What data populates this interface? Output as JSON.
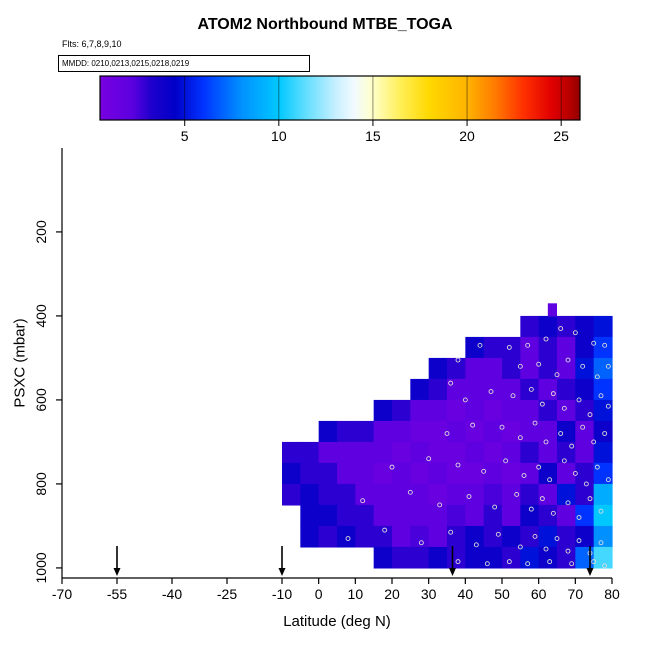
{
  "title": "ATOM2 Northbound MTBE_TOGA",
  "flights_label": "Flts: 6,7,8,9,10",
  "legend": {
    "label": "MMDD: 0210,0213,0215,0218,0219",
    "ticks": [
      5,
      10,
      15,
      20,
      25
    ],
    "value_range": [
      0.5,
      26
    ],
    "colormap": [
      [
        0.5,
        "#7800E0"
      ],
      [
        2.2,
        "#5C00E0"
      ],
      [
        3.2,
        "#2000CC"
      ],
      [
        4.5,
        "#0000C8"
      ],
      [
        6,
        "#0033FF"
      ],
      [
        8,
        "#0090FF"
      ],
      [
        10,
        "#00C8FF"
      ],
      [
        11.5,
        "#66DFFF"
      ],
      [
        13,
        "#C6EFFF"
      ],
      [
        14,
        "#F2FAFF"
      ],
      [
        15,
        "#FFFFC8"
      ],
      [
        16.5,
        "#FFEE55"
      ],
      [
        18,
        "#FFD800"
      ],
      [
        20,
        "#FFB400"
      ],
      [
        21.5,
        "#FF7A00"
      ],
      [
        23,
        "#FF3000"
      ],
      [
        24.5,
        "#E00000"
      ],
      [
        25.5,
        "#B40000"
      ],
      [
        26,
        "#8F0000"
      ]
    ]
  },
  "axes": {
    "xlabel": "Latitude (deg N)",
    "ylabel": "PSXC (mbar)",
    "x_ticks": [
      -70,
      -55,
      -40,
      -25,
      -10,
      0,
      10,
      20,
      30,
      40,
      50,
      60,
      70,
      80
    ],
    "y_ticks": [
      200,
      400,
      600,
      800,
      1000
    ],
    "xlim": [
      -70,
      80
    ],
    "ylim_reversed": [
      1024,
      0
    ]
  },
  "chart_data": {
    "type": "heatmap",
    "title": "ATOM2 Northbound MTBE_TOGA",
    "subtitle": "Flts: 6,7,8,9,10",
    "legend_label": "MMDD: 0210,0213,0215,0218,0219",
    "xlabel": "Latitude (deg N)",
    "ylabel": "PSXC (mbar)",
    "colorbar_ticks": [
      5,
      10,
      15,
      20,
      25
    ],
    "colorbar_range": [
      0.5,
      26
    ],
    "lat_bin_edges": [
      -10,
      -5,
      0,
      5,
      10,
      15,
      20,
      25,
      30,
      35,
      40,
      45,
      50,
      55,
      60,
      65,
      70,
      75,
      80
    ],
    "pressure_bin_edges": [
      400,
      450,
      500,
      550,
      600,
      650,
      700,
      750,
      800,
      850,
      900,
      950,
      1000
    ],
    "values": [
      [
        null,
        null,
        null,
        null,
        null,
        null,
        null,
        null,
        null,
        null,
        null,
        null,
        null,
        3,
        4,
        3,
        4,
        5
      ],
      [
        null,
        null,
        null,
        null,
        null,
        null,
        null,
        null,
        null,
        null,
        4,
        3,
        3,
        2,
        3,
        2,
        4,
        6
      ],
      [
        null,
        null,
        null,
        null,
        null,
        null,
        null,
        null,
        4,
        3,
        2,
        2,
        3,
        2,
        3,
        2,
        5,
        7
      ],
      [
        null,
        null,
        null,
        null,
        null,
        null,
        null,
        4,
        3,
        2,
        2,
        2,
        2,
        3,
        2,
        3,
        4,
        6
      ],
      [
        null,
        null,
        null,
        null,
        null,
        4,
        3,
        2,
        2,
        1.5,
        2,
        1.5,
        2,
        2,
        3,
        2,
        3,
        5
      ],
      [
        null,
        null,
        4,
        3,
        3,
        2,
        2,
        1.5,
        1.5,
        2,
        1.5,
        2,
        1.5,
        2,
        2,
        4,
        2,
        4
      ],
      [
        3,
        3,
        2,
        2,
        2,
        2,
        1.5,
        2,
        1.5,
        1.5,
        2,
        1.5,
        2,
        3,
        2,
        3,
        2,
        5
      ],
      [
        4,
        3,
        3,
        2,
        2,
        1.5,
        2,
        1.5,
        2,
        1.5,
        1.5,
        2,
        1.5,
        2,
        4,
        2,
        3,
        6
      ],
      [
        3,
        4,
        3,
        3,
        2,
        2,
        2,
        2,
        1.5,
        2,
        2,
        2.5,
        2,
        3,
        2,
        5,
        3,
        9
      ],
      [
        null,
        4,
        4,
        3,
        3,
        2,
        2,
        2,
        2,
        2.5,
        2,
        3,
        2,
        4,
        3,
        2,
        6,
        10
      ],
      [
        null,
        4,
        3,
        4,
        3,
        3,
        2,
        2.5,
        2,
        3,
        4,
        3,
        4,
        3,
        5,
        3,
        4,
        8
      ],
      [
        null,
        null,
        null,
        null,
        null,
        4,
        3,
        3,
        4,
        3,
        4,
        4,
        3,
        5,
        4,
        3,
        7,
        11
      ]
    ],
    "spike_cell": {
      "lat0": 62.5,
      "lat1": 65,
      "p0": 370,
      "p1": 400,
      "value": 2
    },
    "sample_points": [
      [
        36,
        560
      ],
      [
        38,
        505
      ],
      [
        44,
        470
      ],
      [
        52,
        475
      ],
      [
        57,
        470
      ],
      [
        62,
        455
      ],
      [
        66,
        430
      ],
      [
        70,
        440
      ],
      [
        75,
        465
      ],
      [
        78,
        470
      ],
      [
        55,
        520
      ],
      [
        60,
        515
      ],
      [
        65,
        540
      ],
      [
        68,
        505
      ],
      [
        72,
        520
      ],
      [
        76,
        545
      ],
      [
        79,
        520
      ],
      [
        40,
        600
      ],
      [
        47,
        580
      ],
      [
        53,
        590
      ],
      [
        58,
        575
      ],
      [
        61,
        610
      ],
      [
        64,
        585
      ],
      [
        67,
        620
      ],
      [
        71,
        600
      ],
      [
        74,
        635
      ],
      [
        77,
        590
      ],
      [
        79,
        615
      ],
      [
        35,
        680
      ],
      [
        42,
        660
      ],
      [
        50,
        665
      ],
      [
        55,
        690
      ],
      [
        59,
        655
      ],
      [
        62,
        700
      ],
      [
        66,
        680
      ],
      [
        69,
        710
      ],
      [
        72,
        665
      ],
      [
        75,
        700
      ],
      [
        78,
        680
      ],
      [
        20,
        760
      ],
      [
        30,
        740
      ],
      [
        38,
        755
      ],
      [
        45,
        770
      ],
      [
        51,
        745
      ],
      [
        56,
        780
      ],
      [
        60,
        760
      ],
      [
        63,
        790
      ],
      [
        67,
        745
      ],
      [
        70,
        775
      ],
      [
        73,
        800
      ],
      [
        76,
        760
      ],
      [
        79,
        790
      ],
      [
        12,
        840
      ],
      [
        25,
        820
      ],
      [
        33,
        850
      ],
      [
        41,
        830
      ],
      [
        48,
        855
      ],
      [
        54,
        825
      ],
      [
        58,
        860
      ],
      [
        61,
        835
      ],
      [
        64,
        870
      ],
      [
        68,
        845
      ],
      [
        71,
        880
      ],
      [
        74,
        835
      ],
      [
        77,
        865
      ],
      [
        8,
        930
      ],
      [
        18,
        910
      ],
      [
        28,
        940
      ],
      [
        36,
        915
      ],
      [
        43,
        945
      ],
      [
        49,
        920
      ],
      [
        55,
        950
      ],
      [
        59,
        925
      ],
      [
        62,
        955
      ],
      [
        65,
        930
      ],
      [
        68,
        960
      ],
      [
        71,
        935
      ],
      [
        74,
        965
      ],
      [
        77,
        940
      ],
      [
        38,
        985
      ],
      [
        46,
        990
      ],
      [
        52,
        985
      ],
      [
        57,
        990
      ],
      [
        63,
        985
      ],
      [
        69,
        990
      ],
      [
        75,
        985
      ],
      [
        78,
        995
      ]
    ],
    "arrow_lats": [
      -55,
      -10,
      36.5,
      74
    ]
  }
}
